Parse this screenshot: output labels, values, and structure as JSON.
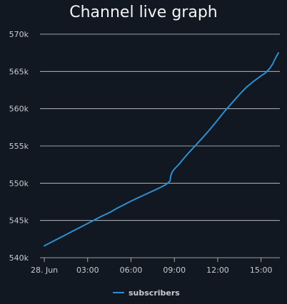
{
  "chart_data": {
    "type": "line",
    "title": "Channel live graph",
    "xlabel": "",
    "ylabel": "",
    "x_ticks": [
      {
        "x": 0,
        "label": "28. Jun"
      },
      {
        "x": 3,
        "label": "03:00"
      },
      {
        "x": 6,
        "label": "06:00"
      },
      {
        "x": 9,
        "label": "09:00"
      },
      {
        "x": 12,
        "label": "12:00"
      },
      {
        "x": 15,
        "label": "15:00"
      }
    ],
    "xlim": [
      -0.3,
      16.3
    ],
    "ylim": [
      540000,
      570000
    ],
    "y_ticks": [
      {
        "y": 540000,
        "label": "540k"
      },
      {
        "y": 545000,
        "label": "545k"
      },
      {
        "y": 550000,
        "label": "550k"
      },
      {
        "y": 555000,
        "label": "555k"
      },
      {
        "y": 560000,
        "label": "560k"
      },
      {
        "y": 565000,
        "label": "565k"
      },
      {
        "y": 570000,
        "label": "570k"
      }
    ],
    "grid": true,
    "legend_position": "bottom-center",
    "series": [
      {
        "name": "subscribers",
        "color": "#2f8ed3",
        "x": [
          0,
          0.5,
          1.0,
          1.5,
          2.0,
          2.5,
          3.0,
          3.5,
          4.0,
          4.5,
          5.0,
          5.5,
          6.0,
          6.5,
          7.0,
          7.5,
          8.0,
          8.4,
          8.7,
          8.75,
          8.85,
          9.0,
          9.3,
          9.6,
          10.0,
          10.5,
          11.0,
          11.5,
          12.0,
          12.5,
          13.0,
          13.5,
          14.0,
          14.5,
          15.0,
          15.3,
          15.6,
          15.8,
          16.0,
          16.2
        ],
        "values": [
          541600,
          542100,
          542600,
          543100,
          543600,
          544100,
          544600,
          545100,
          545600,
          546050,
          546600,
          547100,
          547600,
          548050,
          548500,
          548950,
          549400,
          549800,
          550300,
          551000,
          551500,
          551900,
          552500,
          553200,
          554100,
          555150,
          556200,
          557300,
          558500,
          559700,
          560800,
          561900,
          562900,
          563700,
          564400,
          564800,
          565400,
          566000,
          566800,
          567500
        ]
      }
    ]
  }
}
